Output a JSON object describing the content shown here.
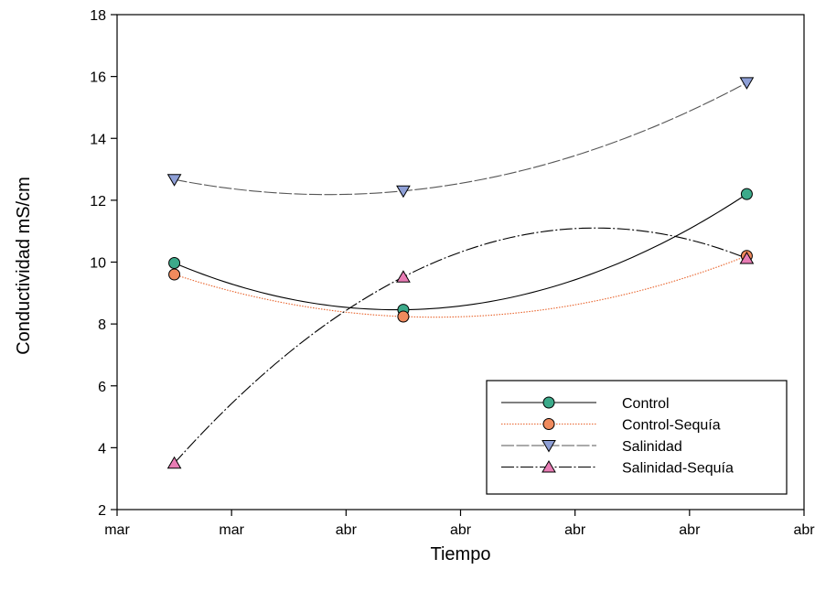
{
  "chart_data": {
    "type": "line",
    "title": "",
    "xlabel": "Tiempo",
    "ylabel": "Conductividad mS/cm",
    "x_tick_labels": [
      "mar",
      "mar",
      "abr",
      "abr",
      "abr",
      "abr",
      "abr"
    ],
    "y_ticks": [
      2,
      4,
      6,
      8,
      10,
      12,
      14,
      16,
      18
    ],
    "ylim": [
      2,
      18
    ],
    "x_positions": [
      0.5,
      2.5,
      5.5
    ],
    "xlim": [
      0,
      6
    ],
    "grid": false,
    "legend_position": "bottom-right",
    "series": [
      {
        "name": "Control",
        "values": [
          9.97,
          8.46,
          12.2
        ],
        "marker": "circle",
        "fill": "#3CAA8A",
        "line": "#000000",
        "dash": "solid"
      },
      {
        "name": "Control-Sequía",
        "values": [
          9.6,
          8.24,
          10.2
        ],
        "marker": "circle",
        "fill": "#F08A5D",
        "line": "#E8632B",
        "dash": "dotted"
      },
      {
        "name": "Salinidad",
        "values": [
          12.67,
          12.3,
          15.8
        ],
        "marker": "triangle-down",
        "fill": "#8E9FD6",
        "line": "#555555",
        "dash": "dash"
      },
      {
        "name": "Salinidad-Sequía",
        "values": [
          3.5,
          9.52,
          10.12
        ],
        "marker": "triangle-up",
        "fill": "#E87CB4",
        "line": "#000000",
        "dash": "dashdot"
      }
    ]
  }
}
